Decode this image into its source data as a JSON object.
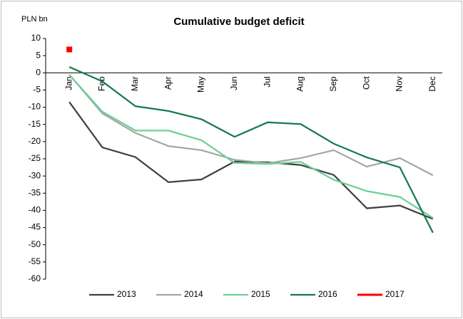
{
  "chart_data": {
    "type": "line",
    "title": "Cumulative budget deficit",
    "y_label": "PLN bn",
    "categories": [
      "Jan",
      "Feb",
      "Mar",
      "Apr",
      "May",
      "Jun",
      "Jul",
      "Aug",
      "Sep",
      "Oct",
      "Nov",
      "Dec"
    ],
    "series": [
      {
        "name": "2013",
        "color": "#404040",
        "values": [
          -8.5,
          -21.7,
          -24.5,
          -31.8,
          -31,
          -25.8,
          -26,
          -26.8,
          -29.7,
          -39.4,
          -38.6,
          -42.5
        ]
      },
      {
        "name": "2014",
        "color": "#a6a6a6",
        "values": [
          -0.5,
          -11.8,
          -17.5,
          -21.3,
          -22.5,
          -25.3,
          -26.3,
          -24.8,
          -22.5,
          -27.3,
          -24.8,
          -29.8
        ]
      },
      {
        "name": "2015",
        "color": "#6fcf97",
        "values": [
          -0.6,
          -11.3,
          -16.8,
          -16.8,
          -19.6,
          -26.2,
          -26.5,
          -25.9,
          -31.1,
          -34.4,
          -36.1,
          -42.2
        ]
      },
      {
        "name": "2016",
        "color": "#1a7a4c",
        "values": [
          1.7,
          -2.5,
          -9.7,
          -11.1,
          -13.5,
          -18.6,
          -14.4,
          -14.9,
          -20.6,
          -24.6,
          -27.5,
          -46.5
        ]
      },
      {
        "name": "2017",
        "color": "#ff0000",
        "marker": "square",
        "values": [
          6.8,
          null,
          null,
          null,
          null,
          null,
          null,
          null,
          null,
          null,
          null,
          null
        ]
      }
    ],
    "ylim": [
      -60,
      10
    ],
    "yticks": [
      10,
      5,
      0,
      -5,
      -10,
      -15,
      -20,
      -25,
      -30,
      -35,
      -40,
      -45,
      -50,
      -55,
      -60
    ],
    "grid": false,
    "legend": "bottom"
  }
}
